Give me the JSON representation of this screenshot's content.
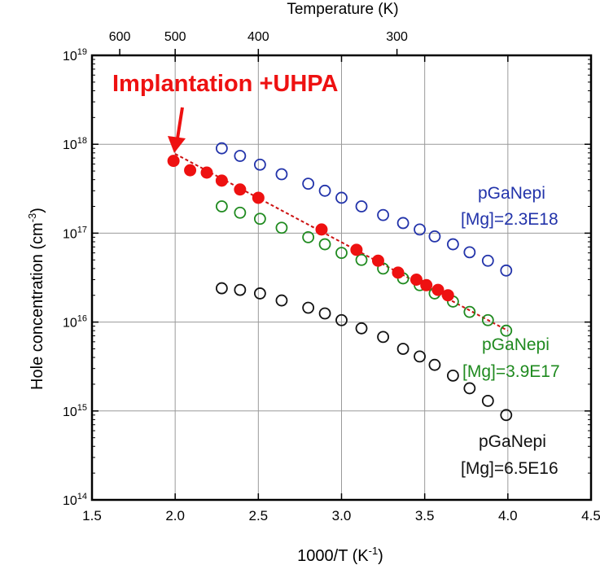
{
  "chart_data": {
    "type": "scatter",
    "xlabel": "1000/T (K",
    "xlabel_sup": "-1",
    "xlabel_suffix": ")",
    "ylabel": "Hole concentration (cm",
    "ylabel_sup": "-3",
    "ylabel_suffix": ")",
    "top_axis_label": "Temperature (K)",
    "xlim": [
      1.5,
      4.5
    ],
    "ylim_exponent": [
      14,
      19
    ],
    "y_scale": "log",
    "grid": true,
    "x_ticks": [
      {
        "value": 1.5,
        "label": "1.5"
      },
      {
        "value": 2.0,
        "label": "2.0"
      },
      {
        "value": 2.5,
        "label": "2.5"
      },
      {
        "value": 3.0,
        "label": "3.0"
      },
      {
        "value": 3.5,
        "label": "3.5"
      },
      {
        "value": 4.0,
        "label": "4.0"
      },
      {
        "value": 4.5,
        "label": "4.5"
      }
    ],
    "y_ticks": [
      {
        "exp": 14,
        "base": "10",
        "sup": "14"
      },
      {
        "exp": 15,
        "base": "10",
        "sup": "15"
      },
      {
        "exp": 16,
        "base": "10",
        "sup": "16"
      },
      {
        "exp": 17,
        "base": "10",
        "sup": "17"
      },
      {
        "exp": 18,
        "base": "10",
        "sup": "18"
      },
      {
        "exp": 19,
        "base": "10",
        "sup": "19"
      }
    ],
    "top_ticks": [
      {
        "kelvin": 600,
        "label": "600"
      },
      {
        "kelvin": 500,
        "label": "500"
      },
      {
        "kelvin": 400,
        "label": "400"
      },
      {
        "kelvin": 300,
        "label": "300"
      }
    ],
    "series": [
      {
        "name": "Implantation +UHPA",
        "color": "#ee1111",
        "marker": "filled-circle",
        "x": [
          1.99,
          2.09,
          2.19,
          2.28,
          2.39,
          2.5,
          2.88,
          3.09,
          3.22,
          3.34,
          3.45,
          3.51,
          3.58,
          3.64
        ],
        "y": [
          6.5e+17,
          5.1e+17,
          4.8e+17,
          3.9e+17,
          3.1e+17,
          2.5e+17,
          1.1e+17,
          6.5e+16,
          4.9e+16,
          3.6e+16,
          3e+16,
          2.6e+16,
          2.3e+16,
          2e+16
        ]
      },
      {
        "name": "",
        "color": "#2233aa",
        "marker": "open-circle",
        "x": [
          2.28,
          2.39,
          2.51,
          2.64,
          2.8,
          2.9,
          3.0,
          3.12,
          3.25,
          3.37,
          3.47,
          3.56,
          3.67,
          3.77,
          3.88,
          3.99
        ],
        "y": [
          9e+17,
          7.4e+17,
          5.9e+17,
          4.6e+17,
          3.6e+17,
          3e+17,
          2.5e+17,
          2e+17,
          1.6e+17,
          1.3e+17,
          1.1e+17,
          9.2e+16,
          7.5e+16,
          6.1e+16,
          4.9e+16,
          3.8e+16
        ]
      },
      {
        "name": "",
        "color": "#1f8a1f",
        "marker": "open-circle",
        "x": [
          2.28,
          2.39,
          2.51,
          2.64,
          2.8,
          2.9,
          3.0,
          3.12,
          3.25,
          3.37,
          3.47,
          3.56,
          3.67,
          3.77,
          3.88,
          3.99
        ],
        "y": [
          2e+17,
          1.7e+17,
          1.45e+17,
          1.15e+17,
          9e+16,
          7.5e+16,
          6e+16,
          5e+16,
          4e+16,
          3.1e+16,
          2.6e+16,
          2.1e+16,
          1.7e+16,
          1.3e+16,
          1.05e+16,
          8000000000000000.0
        ]
      },
      {
        "name": "",
        "color": "#111111",
        "marker": "open-circle",
        "x": [
          2.28,
          2.39,
          2.51,
          2.64,
          2.8,
          2.9,
          3.0,
          3.12,
          3.25,
          3.37,
          3.47,
          3.56,
          3.67,
          3.77,
          3.88,
          3.99
        ],
        "y": [
          2.4e+16,
          2.3e+16,
          2.1e+16,
          1.75e+16,
          1.45e+16,
          1.25e+16,
          1.05e+16,
          8500000000000000.0,
          6800000000000000.0,
          5000000000000000.0,
          4100000000000000.0,
          3300000000000000.0,
          2500000000000000.0,
          1800000000000000.0,
          1300000000000000.0,
          900000000000000.0
        ]
      }
    ],
    "fit_line": {
      "color": "#cc1111",
      "style": "dashed",
      "x": [
        2.0,
        4.0
      ],
      "y": [
        7.8e+17,
        8000000000000000.0
      ]
    },
    "annotations": [
      {
        "id": "implant",
        "text": "Implantation +UHPA",
        "color": "#ee1111",
        "bold": true
      },
      {
        "id": "blue1",
        "text": "pGaNepi",
        "color": "#2233aa"
      },
      {
        "id": "blue2",
        "text": "[Mg]=2.3E18",
        "color": "#2233aa"
      },
      {
        "id": "green1",
        "text": "pGaNepi",
        "color": "#1f8a1f"
      },
      {
        "id": "green2",
        "text": "[Mg]=3.9E17",
        "color": "#1f8a1f"
      },
      {
        "id": "black1",
        "text": "pGaNepi",
        "color": "#111111"
      },
      {
        "id": "black2",
        "text": "[Mg]=6.5E16",
        "color": "#111111"
      }
    ]
  }
}
